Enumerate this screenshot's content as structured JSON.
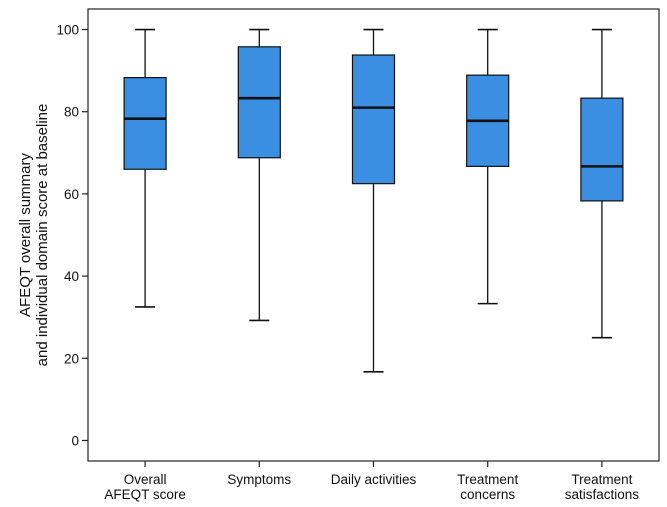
{
  "chart_data": {
    "type": "boxplot",
    "title": "",
    "xlabel": "",
    "ylabel_lines": [
      "AFEQT  overall summary",
      "and individual domain score at baseline"
    ],
    "ylim": [
      -5,
      105
    ],
    "yticks": [
      0,
      20,
      40,
      60,
      80,
      100
    ],
    "grid": false,
    "categories": [
      [
        "Overall",
        "AFEQT score"
      ],
      [
        "Symptoms"
      ],
      [
        "Daily activities"
      ],
      [
        "Treatment",
        "concerns"
      ],
      [
        "Treatment",
        "satisfactions"
      ]
    ],
    "boxes": [
      {
        "whisker_low": 32.5,
        "q1": 66,
        "median": 78.3,
        "q3": 88.3,
        "whisker_high": 100
      },
      {
        "whisker_low": 29.2,
        "q1": 68.8,
        "median": 83.3,
        "q3": 95.8,
        "whisker_high": 100
      },
      {
        "whisker_low": 16.7,
        "q1": 62.5,
        "median": 81,
        "q3": 93.8,
        "whisker_high": 100
      },
      {
        "whisker_low": 33.3,
        "q1": 66.7,
        "median": 77.8,
        "q3": 88.9,
        "whisker_high": 100
      },
      {
        "whisker_low": 25,
        "q1": 58.3,
        "median": 66.7,
        "q3": 83.3,
        "whisker_high": 100
      }
    ],
    "colors": {
      "box_fill": "#3b8fe3",
      "stroke": "#111111",
      "axis": "#222222"
    }
  }
}
